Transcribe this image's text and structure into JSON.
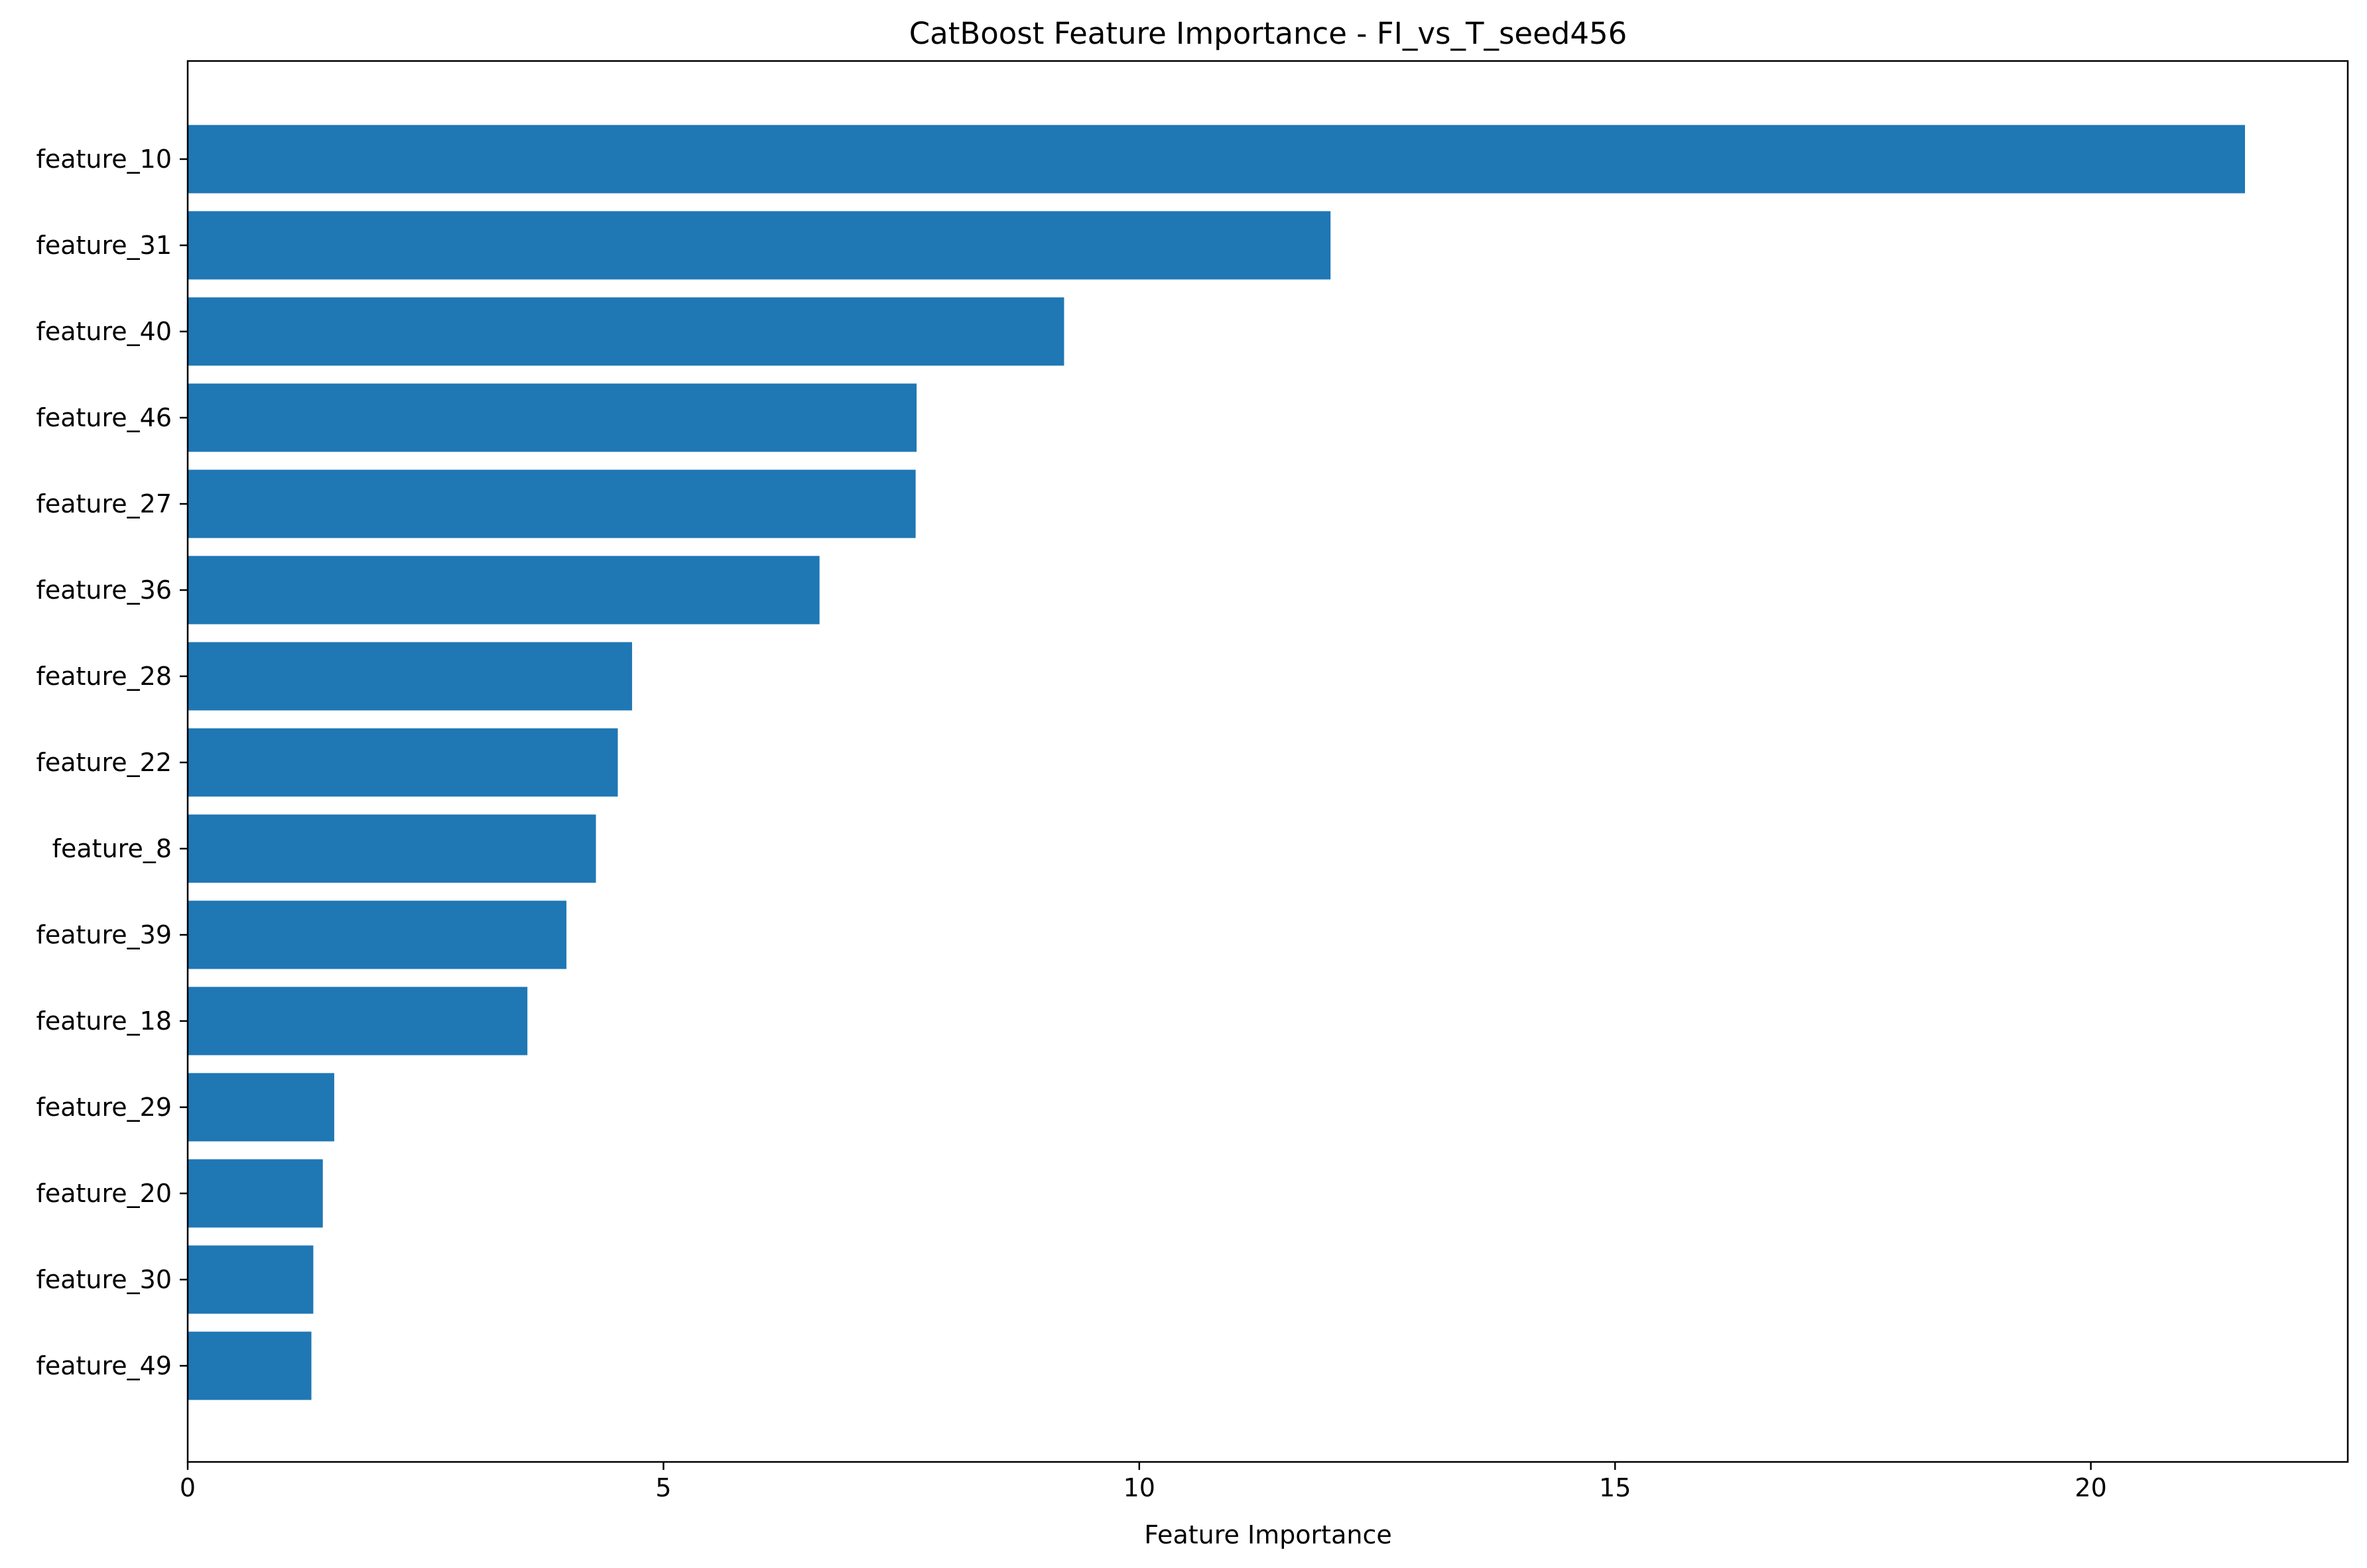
{
  "chart_data": {
    "type": "bar",
    "orientation": "horizontal",
    "title": "CatBoost Feature Importance - FI_vs_T_seed456",
    "xlabel": "Feature Importance",
    "ylabel": "",
    "xlim": [
      0,
      22.7
    ],
    "xticks": [
      0,
      5,
      10,
      15,
      20
    ],
    "grid": false,
    "bar_color": "#1f77b4",
    "categories": [
      "feature_10",
      "feature_31",
      "feature_40",
      "feature_46",
      "feature_27",
      "feature_36",
      "feature_28",
      "feature_22",
      "feature_8",
      "feature_39",
      "feature_18",
      "feature_29",
      "feature_20",
      "feature_30",
      "feature_49"
    ],
    "values": [
      21.62,
      12.01,
      9.21,
      7.66,
      7.65,
      6.64,
      4.67,
      4.52,
      4.29,
      3.98,
      3.57,
      1.54,
      1.42,
      1.32,
      1.3
    ]
  }
}
